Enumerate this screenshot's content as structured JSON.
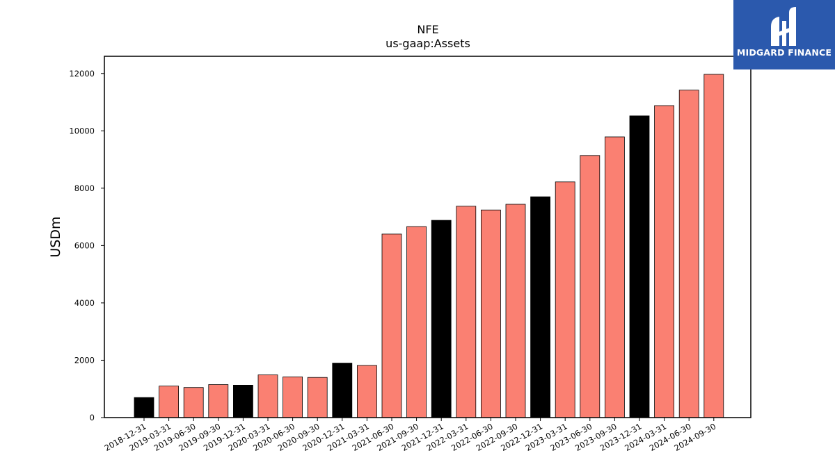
{
  "logo": {
    "text": "MIDGARD FINANCE"
  },
  "colors": {
    "annual": "#000000",
    "quarterly": "#fa8072",
    "logo_bg": "#2b59ad"
  },
  "chart_data": {
    "type": "bar",
    "title": "NFE",
    "subtitle": "us-gaap:Assets",
    "xlabel": "",
    "ylabel": "USDm",
    "ylim": [
      0,
      12600
    ],
    "yticks": [
      0,
      2000,
      4000,
      6000,
      8000,
      10000,
      12000
    ],
    "grid": false,
    "categories": [
      "2018-12-31",
      "2019-03-31",
      "2019-06-30",
      "2019-09-30",
      "2019-12-31",
      "2020-03-31",
      "2020-06-30",
      "2020-09-30",
      "2020-12-31",
      "2021-03-31",
      "2021-06-30",
      "2021-09-30",
      "2021-12-31",
      "2022-03-31",
      "2022-06-30",
      "2022-09-30",
      "2022-12-31",
      "2023-03-31",
      "2023-06-30",
      "2023-09-30",
      "2023-12-31",
      "2024-03-31",
      "2024-06-30",
      "2024-09-30"
    ],
    "values": [
      700,
      1100,
      1050,
      1150,
      1130,
      1490,
      1420,
      1400,
      1900,
      1820,
      6400,
      6660,
      6880,
      7370,
      7240,
      7440,
      7700,
      8220,
      9140,
      9790,
      10520,
      10880,
      11420,
      11970
    ],
    "annual_flags": [
      true,
      false,
      false,
      false,
      true,
      false,
      false,
      false,
      true,
      false,
      false,
      false,
      true,
      false,
      false,
      false,
      true,
      false,
      false,
      false,
      true,
      false,
      false,
      false
    ]
  }
}
